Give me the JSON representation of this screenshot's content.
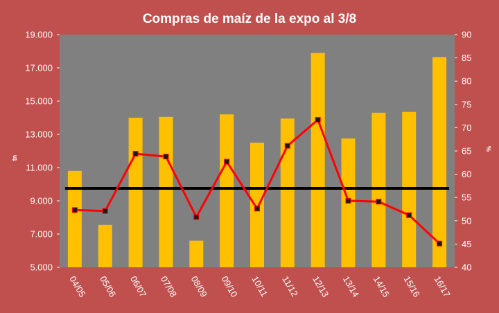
{
  "chart_data": {
    "type": "bar",
    "title": "Compras de maíz de la expo al 3/8",
    "categories": [
      "04/05",
      "05/06",
      "06/07",
      "07/08",
      "08/09",
      "09/10",
      "10/11",
      "11/12",
      "12/13",
      "13/14",
      "14/15",
      "15/16",
      "16/17"
    ],
    "series": [
      {
        "type": "bar",
        "axis": "left",
        "values": [
          10800,
          7550,
          14000,
          14050,
          6600,
          14200,
          12500,
          13950,
          17900,
          12750,
          14300,
          14350,
          17650
        ]
      },
      {
        "type": "line",
        "axis": "right",
        "values": [
          52.3,
          52.1,
          64.4,
          63.8,
          50.8,
          62.7,
          52.6,
          66.1,
          71.7,
          54.3,
          54.1,
          51.2,
          45.1
        ]
      },
      {
        "type": "reference_line",
        "axis": "left",
        "value": 9750
      }
    ],
    "yleft": {
      "label": "tn",
      "lim": [
        5000,
        19000
      ],
      "ticks": [
        5000,
        7000,
        9000,
        11000,
        13000,
        15000,
        17000,
        19000
      ],
      "tick_labels": [
        "5.000",
        "7.000",
        "9.000",
        "11.000",
        "13.000",
        "15.000",
        "17.000",
        "19.000"
      ]
    },
    "yright": {
      "label": "%",
      "lim": [
        40,
        90
      ],
      "ticks": [
        40,
        45,
        50,
        55,
        60,
        65,
        70,
        75,
        80,
        85,
        90
      ],
      "tick_labels": [
        "40",
        "45",
        "50",
        "55",
        "60",
        "65",
        "70",
        "75",
        "80",
        "85",
        "90"
      ]
    },
    "grid": false,
    "legend": "none",
    "colors": {
      "background": "#c0504d",
      "plot_area": "#808080",
      "bars": "#ffc000",
      "line": "#ff0000",
      "markers": "#1a1a1a",
      "reference_line": "#000000",
      "text": "#ffffff"
    }
  }
}
